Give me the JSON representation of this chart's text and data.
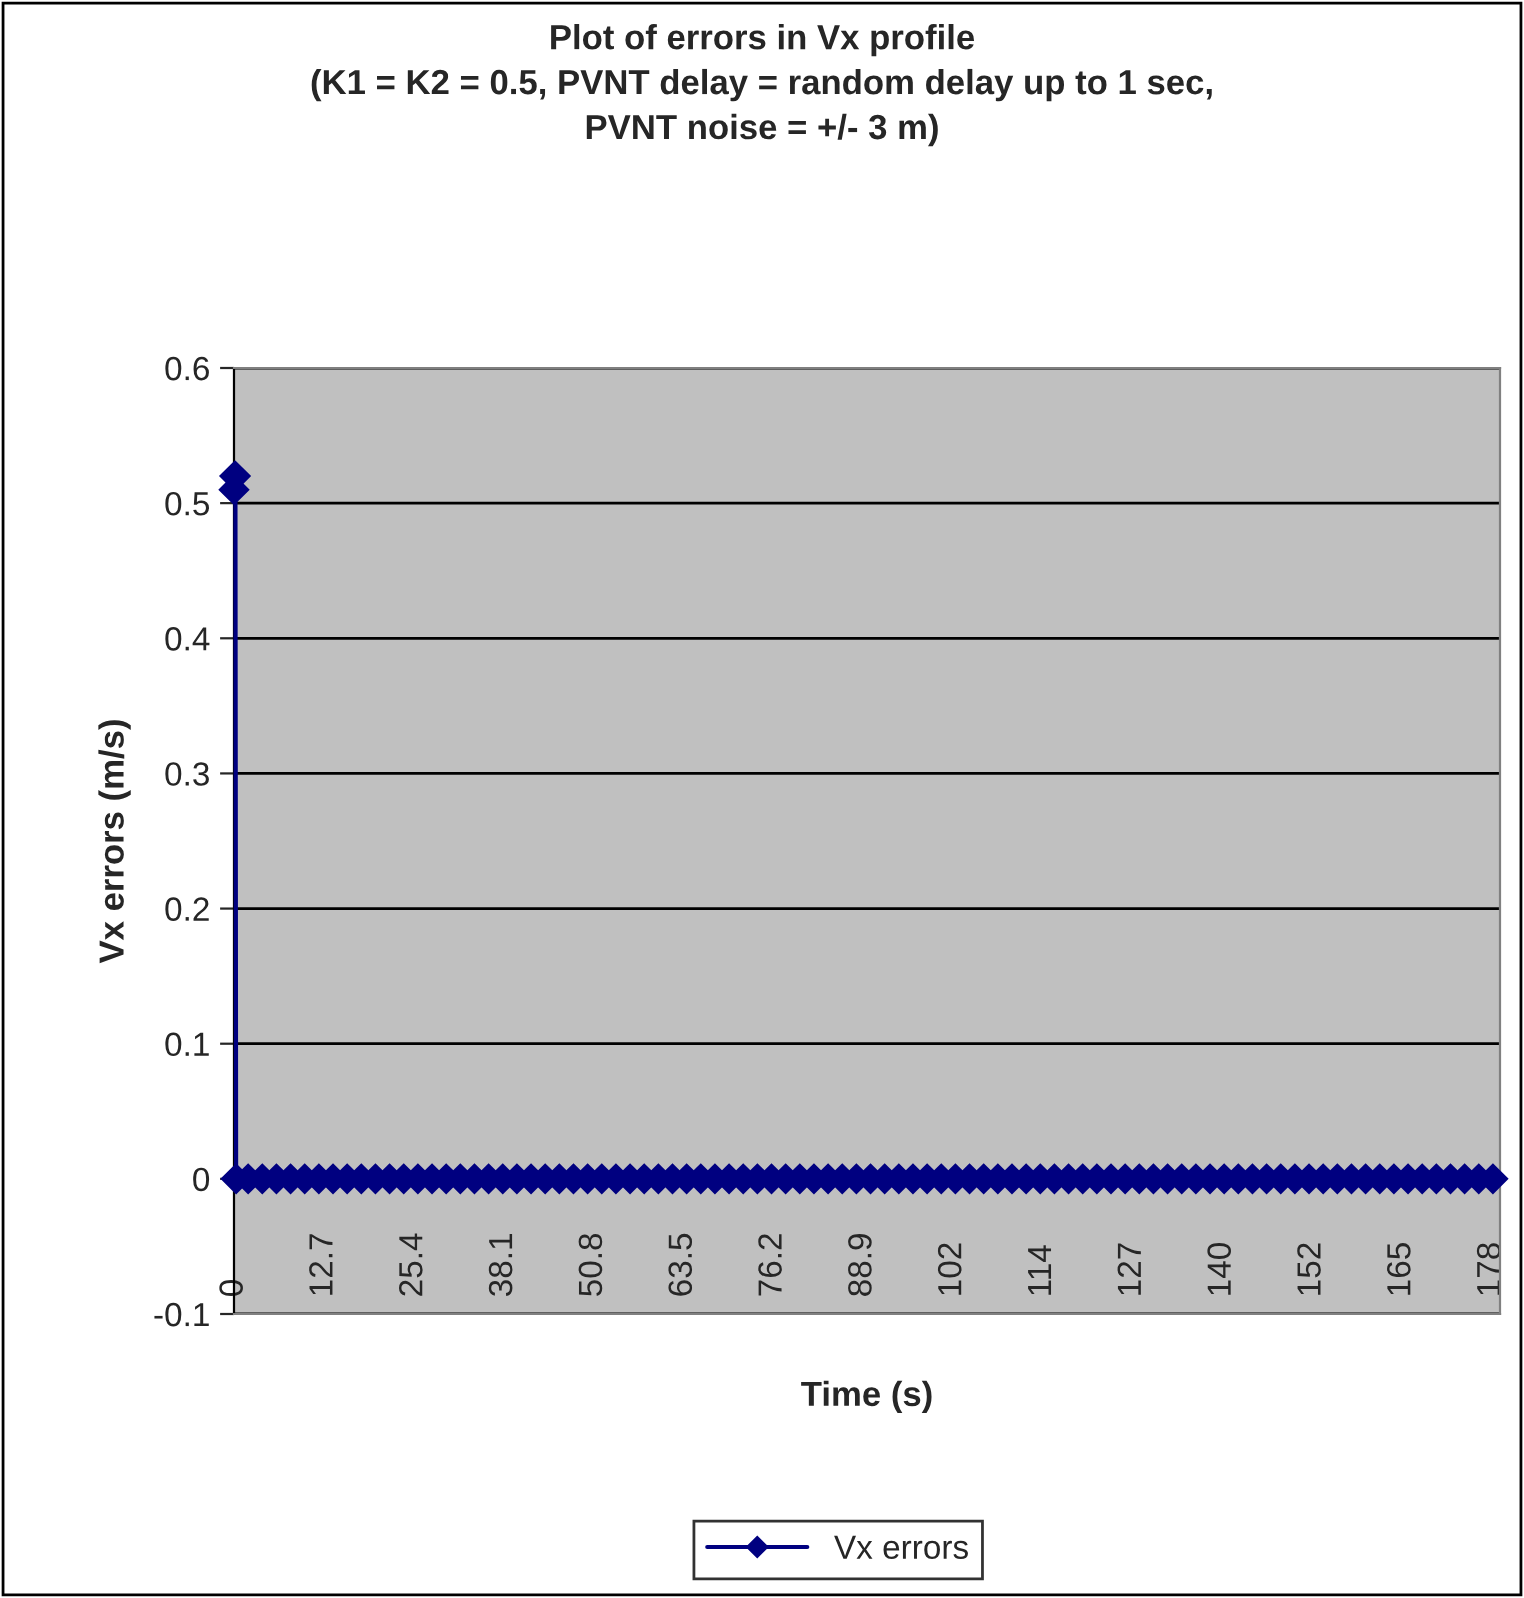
{
  "chart_data": {
    "type": "line",
    "title": "Plot of errors in Vx profile\n(K1 = K2 = 0.5, PVNT delay = random delay up to 1 sec,\nPVNT noise = +/- 3 m)",
    "xlabel": "Time (s)",
    "ylabel": "Vx errors (m/s)",
    "series": [
      {
        "name": "Vx errors",
        "color": "#000080",
        "x": [
          0,
          0.1,
          0.2,
          0.3,
          2,
          4,
          6,
          8,
          10,
          12,
          14,
          16,
          18,
          20,
          22,
          24,
          26,
          28,
          30,
          32,
          34,
          36,
          38,
          40,
          42,
          44,
          46,
          48,
          50,
          52,
          54,
          56,
          58,
          60,
          62,
          64,
          66,
          68,
          70,
          72,
          74,
          76,
          78,
          80,
          82,
          84,
          86,
          88,
          90,
          92,
          94,
          96,
          98,
          100,
          102,
          104,
          106,
          108,
          110,
          112,
          114,
          116,
          118,
          120,
          122,
          124,
          126,
          128,
          130,
          132,
          134,
          136,
          138,
          140,
          142,
          144,
          146,
          148,
          150,
          152,
          154,
          156,
          158,
          160,
          162,
          164,
          166,
          168,
          170,
          172,
          174,
          176,
          178
        ],
        "values": [
          0.51,
          0.52,
          0.52,
          0,
          0,
          0,
          0,
          0,
          0,
          0,
          0,
          0,
          0,
          0,
          0,
          0,
          0,
          0,
          0,
          0,
          0,
          0,
          0,
          0,
          0,
          0,
          0,
          0,
          0,
          0,
          0,
          0,
          0,
          0,
          0,
          0,
          0,
          0,
          0,
          0,
          0,
          0,
          0,
          0,
          0,
          0,
          0,
          0,
          0,
          0,
          0,
          0,
          0,
          0,
          0,
          0,
          0,
          0,
          0,
          0,
          0,
          0,
          0,
          0,
          0,
          0,
          0,
          0,
          0,
          0,
          0,
          0,
          0,
          0,
          0,
          0,
          0,
          0,
          0,
          0,
          0,
          0,
          0,
          0,
          0,
          0,
          0,
          0,
          0,
          0,
          0,
          0,
          0
        ]
      }
    ],
    "xlim": [
      0,
      179
    ],
    "xticks": [
      0,
      12.7,
      25.4,
      38.1,
      50.8,
      63.5,
      76.2,
      88.9,
      {
        "value": 101.6,
        "label": "102"
      },
      {
        "value": 114.3,
        "label": "114"
      },
      127,
      {
        "value": 139.7,
        "label": "140"
      },
      {
        "value": 152.4,
        "label": "152"
      },
      {
        "value": 165.1,
        "label": "165"
      },
      {
        "value": 177.8,
        "label": "178"
      }
    ],
    "ylim": [
      -0.1,
      0.6
    ],
    "yticks": [
      -0.1,
      0,
      0.1,
      0.2,
      0.3,
      0.4,
      0.5,
      0.6
    ],
    "grid": "y",
    "legend": "bottom",
    "marker": "diamond",
    "line_style": "solid"
  }
}
